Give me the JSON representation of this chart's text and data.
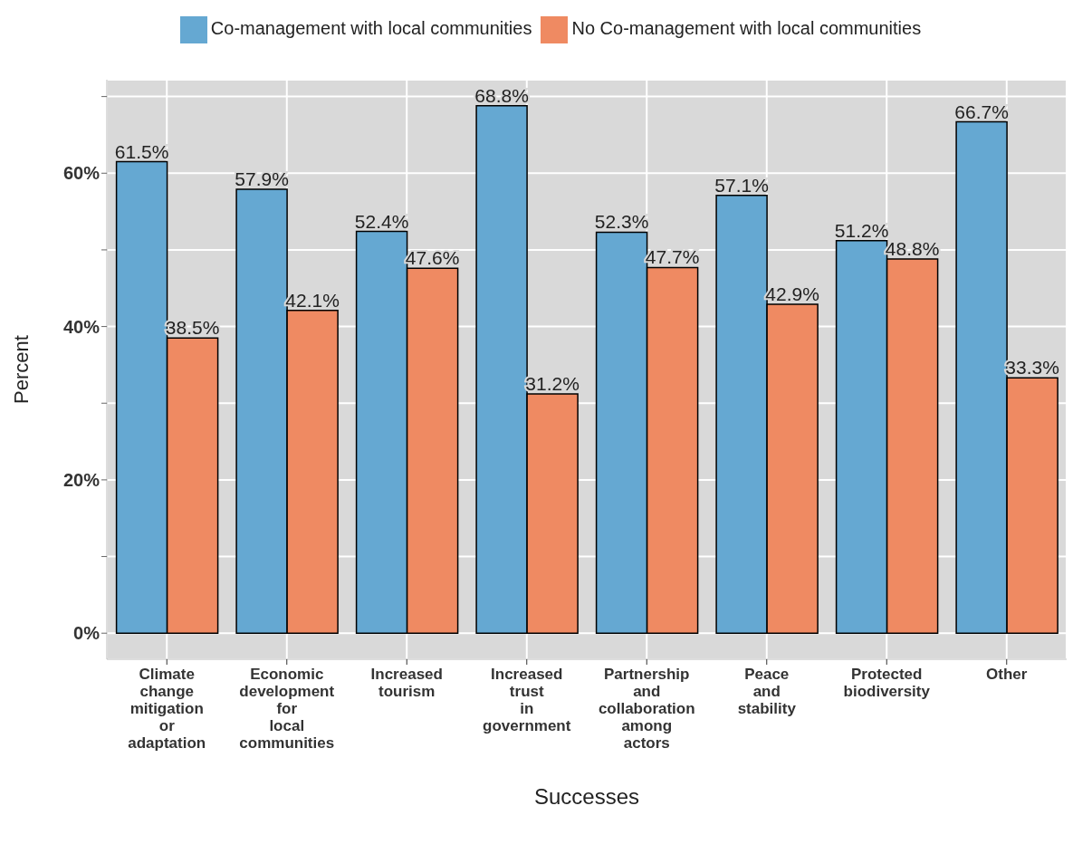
{
  "chart_data": {
    "type": "bar",
    "xlabel": "Successes",
    "ylabel": "Percent",
    "categories": [
      "Climate\nchange\nmitigation\nor\nadaptation",
      "Economic\ndevelopment\nfor\nlocal\ncommunities",
      "Increased\ntourism",
      "Increased\ntrust\nin\ngovernment",
      "Partnership\nand\ncollaboration\namong\nactors",
      "Peace\nand\nstability",
      "Protected\nbiodiversity",
      "Other"
    ],
    "series": [
      {
        "name": "Co-management with local communities",
        "color": "#65a8d2",
        "values": [
          61.5,
          57.9,
          52.4,
          68.8,
          52.3,
          57.1,
          51.2,
          66.7
        ],
        "value_labels": [
          "61.5%",
          "57.9%",
          "52.4%",
          "68.8%",
          "52.3%",
          "57.1%",
          "51.2%",
          "66.7%"
        ]
      },
      {
        "name": "No Co-management with local communities",
        "color": "#ef8a62",
        "values": [
          38.5,
          42.1,
          47.6,
          31.2,
          47.7,
          42.9,
          48.8,
          33.3
        ],
        "value_labels": [
          "38.5%",
          "42.1%",
          "47.6%",
          "31.2%",
          "47.7%",
          "42.9%",
          "48.8%",
          "33.3%"
        ]
      }
    ],
    "ylim": [
      -3.4,
      72.2
    ],
    "yticks": [
      {
        "value": 0,
        "label": "0%"
      },
      {
        "value": 10,
        "label": null
      },
      {
        "value": 20,
        "label": "20%"
      },
      {
        "value": 30,
        "label": null
      },
      {
        "value": 40,
        "label": "40%"
      },
      {
        "value": 50,
        "label": null
      },
      {
        "value": 60,
        "label": "60%"
      },
      {
        "value": 70,
        "label": null
      }
    ],
    "grid": true,
    "legend": "top"
  }
}
